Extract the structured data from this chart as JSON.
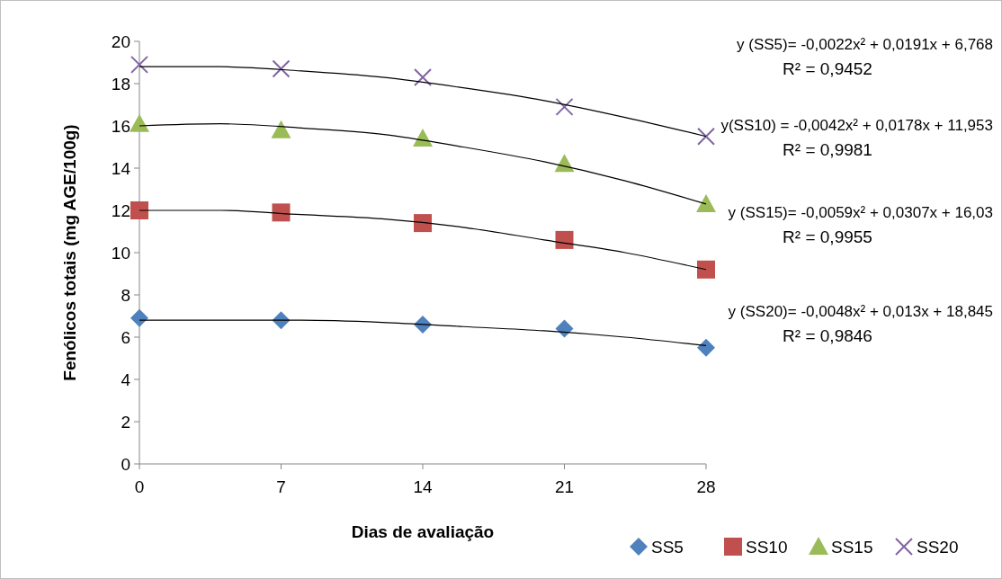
{
  "chart_data": {
    "type": "scatter",
    "xlabel": "Dias de avaliação",
    "ylabel": "Fenólicos totais (mg AGE/100g)",
    "xlim": [
      0,
      28
    ],
    "xticks": [
      0,
      7,
      14,
      21,
      28
    ],
    "ylim": [
      0,
      20
    ],
    "yticks": [
      0,
      2,
      4,
      6,
      8,
      10,
      12,
      14,
      16,
      18,
      20
    ],
    "grid": false,
    "legend": "bottom",
    "series": [
      {
        "name": "SS5",
        "color": "#4f81bd",
        "marker": "diamond",
        "x": [
          0,
          7,
          14,
          21,
          28
        ],
        "values": [
          6.9,
          6.8,
          6.6,
          6.4,
          5.5
        ]
      },
      {
        "name": "SS10",
        "color": "#c0504d",
        "marker": "square",
        "x": [
          0,
          7,
          14,
          21,
          28
        ],
        "values": [
          12.0,
          11.9,
          11.4,
          10.6,
          9.2
        ]
      },
      {
        "name": "SS15",
        "color": "#9bbb59",
        "marker": "triangle",
        "x": [
          0,
          7,
          14,
          21,
          28
        ],
        "values": [
          16.1,
          15.8,
          15.4,
          14.2,
          12.3
        ]
      },
      {
        "name": "SS20",
        "color": "#8064a2",
        "marker": "cross",
        "x": [
          0,
          7,
          14,
          21,
          28
        ],
        "values": [
          18.9,
          18.7,
          18.3,
          16.9,
          15.5
        ]
      },
      {
        "type": "line",
        "color": "#000000",
        "marker": "none",
        "x": [
          0,
          4,
          8,
          12,
          16,
          20,
          24,
          28
        ],
        "values": [
          6.8,
          6.8,
          6.8,
          6.7,
          6.5,
          6.3,
          6.0,
          5.6
        ]
      },
      {
        "type": "line",
        "color": "#000000",
        "marker": "none",
        "x": [
          0,
          4,
          8,
          12,
          16,
          20,
          24,
          28
        ],
        "values": [
          12.0,
          12.0,
          11.8,
          11.6,
          11.2,
          10.6,
          10.0,
          9.2
        ]
      },
      {
        "type": "line",
        "color": "#000000",
        "marker": "none",
        "x": [
          0,
          4,
          8,
          12,
          16,
          20,
          24,
          28
        ],
        "values": [
          16.0,
          16.1,
          15.9,
          15.6,
          15.0,
          14.3,
          13.4,
          12.3
        ]
      },
      {
        "type": "line",
        "color": "#000000",
        "marker": "none",
        "x": [
          0,
          4,
          8,
          12,
          16,
          20,
          24,
          28
        ],
        "values": [
          18.8,
          18.8,
          18.6,
          18.3,
          17.8,
          17.2,
          16.4,
          15.5
        ]
      }
    ],
    "annotations": [
      "y (SS5)= -0,0022x² + 0,0191x + 6,768",
      "R² = 0,9452",
      "y(SS10) = -0,0042x² + 0,0178x + 11,953",
      "R² = 0,9981",
      "y (SS15)= -0,0059x² + 0,0307x + 16,03",
      "R² = 0,9955",
      "y (SS20)= -0,0048x² + 0,013x + 18,845",
      "R² = 0,9846"
    ]
  }
}
